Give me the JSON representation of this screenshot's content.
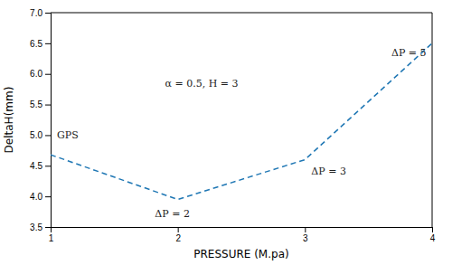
{
  "chart_data": {
    "type": "line",
    "x": [
      1.0,
      2.0,
      3.0,
      4.0
    ],
    "values": [
      4.68,
      3.95,
      4.6,
      6.5
    ],
    "line_style": "dashed",
    "xlabel": "PRESSURE (M.pa)",
    "ylabel": "DeltaH(mm)",
    "xlim": [
      1,
      4
    ],
    "ylim": [
      3.5,
      7
    ],
    "xticks": [
      1,
      2,
      3,
      4
    ],
    "yticks": [
      3.5,
      {
        "value": 4.0,
        "label": "4.0"
      },
      4.5,
      {
        "value": 5.0,
        "label": "5.0"
      },
      5.5,
      {
        "value": 6.0,
        "label": "6.0"
      },
      6.5,
      {
        "value": 7.0,
        "label": "7.0"
      }
    ],
    "annotations": [
      {
        "text": "α = 0.5, H = 3",
        "x": 1.9,
        "y": 5.85
      },
      {
        "text": "GPS",
        "x": 1.05,
        "y": 5.0
      },
      {
        "text": "ΔP = 2",
        "x": 1.82,
        "y": 3.72
      },
      {
        "text": "ΔP = 3",
        "x": 3.05,
        "y": 4.42
      },
      {
        "text": "ΔP = 5",
        "x": 3.68,
        "y": 6.35
      }
    ]
  }
}
